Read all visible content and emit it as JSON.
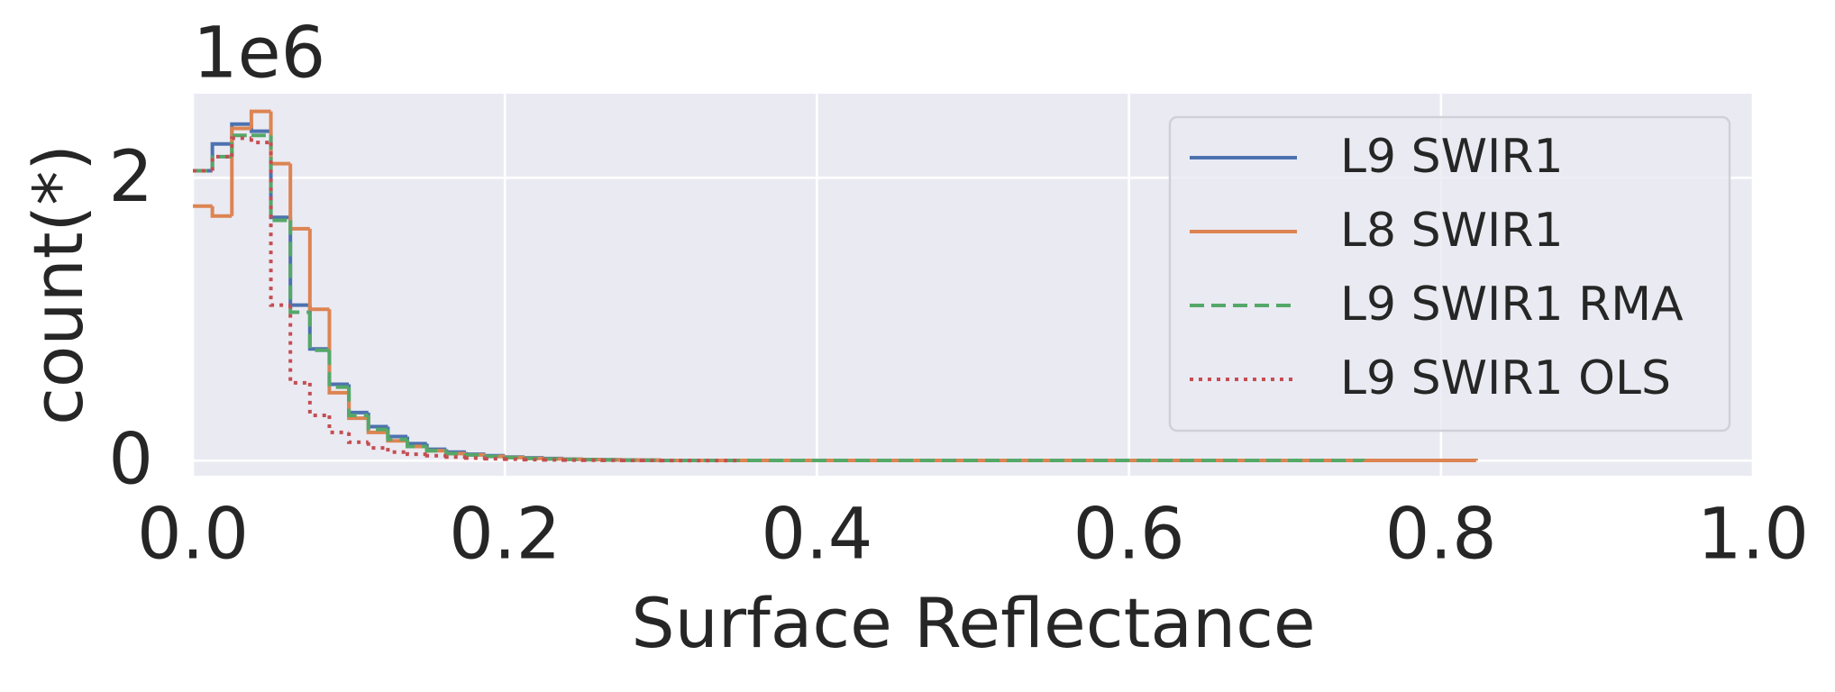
{
  "chart_data": {
    "type": "histogram",
    "xlabel": "Surface Reflectance",
    "ylabel": "count(*)",
    "y_offset_label": "1e6",
    "xlim": [
      0,
      1
    ],
    "xticks": [
      {
        "value": 0,
        "label": "0.0"
      },
      0.2,
      0.4,
      0.6,
      0.8,
      {
        "value": 1,
        "label": "1.0"
      }
    ],
    "ylim": [
      -0.107,
      2.595
    ],
    "yticks": [
      0,
      2
    ],
    "grid": true,
    "legend": "upper right",
    "series": [
      {
        "name": "L9 SWIR1",
        "color": "#4c72b0",
        "style": "solid",
        "bins": [
          0,
          0.0125,
          0.025,
          0.0375,
          0.05,
          0.0625,
          0.075,
          0.0875,
          0.1,
          0.1125,
          0.125,
          0.1375,
          0.15,
          0.1625,
          0.175,
          0.1875,
          0.2,
          0.2125,
          0.225,
          0.2375,
          0.25,
          0.2625,
          0.275,
          0.2875,
          0.3,
          0.75
        ],
        "values": [
          2.05,
          2.24,
          2.38,
          2.33,
          1.72,
          1.1,
          0.79,
          0.54,
          0.34,
          0.24,
          0.17,
          0.12,
          0.08,
          0.06,
          0.045,
          0.035,
          0.025,
          0.02,
          0.015,
          0.01,
          0.008,
          0.006,
          0.004,
          0.003,
          0.001
        ]
      },
      {
        "name": "L8 SWIR1",
        "color": "#dd8452",
        "style": "solid",
        "bins": [
          0,
          0.0125,
          0.025,
          0.0375,
          0.05,
          0.0625,
          0.075,
          0.0875,
          0.1,
          0.1125,
          0.125,
          0.1375,
          0.15,
          0.1625,
          0.175,
          0.1875,
          0.2,
          0.2125,
          0.225,
          0.2375,
          0.25,
          0.2625,
          0.275,
          0.2875,
          0.3,
          0.8225
        ],
        "values": [
          1.8,
          1.73,
          2.35,
          2.47,
          2.1,
          1.64,
          1.07,
          0.48,
          0.3,
          0.2,
          0.14,
          0.1,
          0.07,
          0.05,
          0.04,
          0.03,
          0.022,
          0.016,
          0.012,
          0.009,
          0.007,
          0.005,
          0.004,
          0.003,
          0.001
        ]
      },
      {
        "name": "L9 SWIR1 RMA",
        "color": "#55a868",
        "style": "dashed",
        "bins": [
          0,
          0.0125,
          0.025,
          0.0375,
          0.05,
          0.0625,
          0.075,
          0.0875,
          0.1,
          0.1125,
          0.125,
          0.1375,
          0.15,
          0.1625,
          0.175,
          0.1875,
          0.2,
          0.2125,
          0.225,
          0.2375,
          0.25,
          0.2625,
          0.275,
          0.2875,
          0.3,
          0.75
        ],
        "values": [
          2.05,
          2.15,
          2.3,
          2.3,
          1.7,
          1.05,
          0.78,
          0.52,
          0.32,
          0.22,
          0.15,
          0.1,
          0.07,
          0.05,
          0.04,
          0.03,
          0.022,
          0.016,
          0.012,
          0.009,
          0.007,
          0.005,
          0.004,
          0.003,
          0.001
        ]
      },
      {
        "name": "L9 SWIR1 OLS",
        "color": "#c44e52",
        "style": "dotted",
        "bins": [
          0,
          0.0125,
          0.025,
          0.0375,
          0.05,
          0.0625,
          0.075,
          0.0875,
          0.1,
          0.1125,
          0.125,
          0.1375,
          0.15,
          0.1625,
          0.175,
          0.1875,
          0.2,
          0.2125,
          0.225,
          0.2375,
          0.25,
          0.2625,
          0.275,
          0.2875,
          0.3,
          0.35
        ],
        "values": [
          2.05,
          2.15,
          2.28,
          2.25,
          1.1,
          0.55,
          0.32,
          0.2,
          0.13,
          0.09,
          0.06,
          0.045,
          0.035,
          0.025,
          0.018,
          0.013,
          0.01,
          0.007,
          0.005,
          0.004,
          0.003,
          0.002,
          0.0015,
          0.001,
          0.0005
        ]
      }
    ]
  }
}
